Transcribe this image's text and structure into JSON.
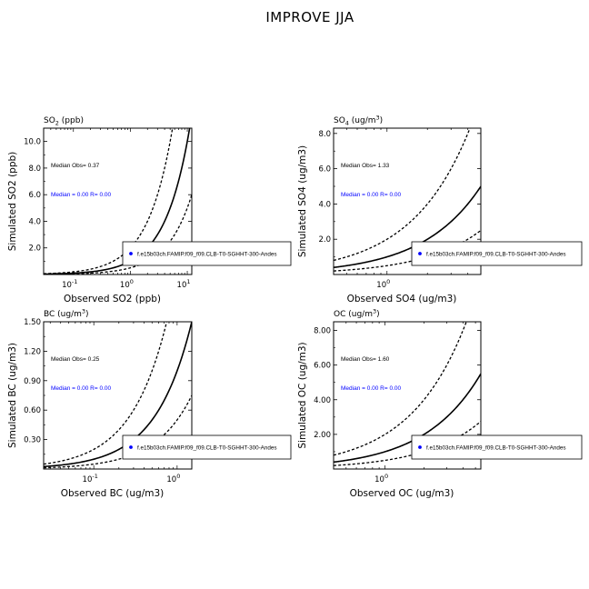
{
  "figure_title": "IMPROVE JJA",
  "colors": {
    "median_annotation": "#0000ff",
    "legend_marker": "#0000ff",
    "lines": "#000000"
  },
  "chart_data": [
    {
      "type": "scatter",
      "title": "SO2 (ppb)",
      "title_base": "SO",
      "title_sub": "2",
      "title_rest": " (ppb)",
      "xlabel": "Observed SO2 (ppb)",
      "ylabel": "Simulated SO2 (ppb)",
      "x_scale": "log",
      "xlim": [
        0.03,
        12
      ],
      "ylim": [
        0,
        11
      ],
      "x_ticks": [
        {
          "value": 0.1,
          "base": "10",
          "exp": "-1"
        },
        {
          "value": 1,
          "base": "10",
          "exp": "0"
        },
        {
          "value": 10,
          "base": "10",
          "exp": "1"
        }
      ],
      "y_ticks": [
        2,
        4,
        6,
        8,
        10
      ],
      "y_tick_labels": [
        "2.0",
        "4.0",
        "6.0",
        "8.0",
        "10.0"
      ],
      "lines": [
        "1:1",
        "2:1",
        "1:2"
      ],
      "median_obs": "Median Obs= 0.37",
      "median_sim": "Median = 0.00  R= 0.00",
      "legend": "f.e15b03ch.FAMIP.f09_f09.CLB-T0-SGHHT-300-Andes",
      "points": []
    },
    {
      "type": "scatter",
      "title": "SO4 (ug/m3)",
      "title_base": "SO",
      "title_sub": "4",
      "title_rest": " (ug/m",
      "title_sup": "3",
      "title_end": ")",
      "xlabel": "Observed SO4 (ug/m3)",
      "ylabel": "Simulated SO4 (ug/m3)",
      "x_scale": "log",
      "xlim": [
        0.4,
        5
      ],
      "ylim": [
        0,
        8.3
      ],
      "x_ticks": [
        {
          "value": 1,
          "base": "10",
          "exp": "0"
        }
      ],
      "y_ticks": [
        2,
        4,
        6,
        8
      ],
      "y_tick_labels": [
        "2.0",
        "4.0",
        "6.0",
        "8.0"
      ],
      "lines": [
        "1:1",
        "2:1",
        "1:2"
      ],
      "median_obs": "Median Obs= 1.33",
      "median_sim": "Median = 0.00  R= 0.00",
      "legend": "f.e15b03ch.FAMIP.f09_f09.CLB-T0-SGHHT-300-Andes",
      "points": []
    },
    {
      "type": "scatter",
      "title": "BC (ug/m3)",
      "title_base": "BC",
      "title_rest": " (ug/m",
      "title_sup": "3",
      "title_end": ")",
      "xlabel": "Observed BC (ug/m3)",
      "ylabel": "Simulated BC (ug/m3)",
      "x_scale": "log",
      "xlim": [
        0.025,
        1.5
      ],
      "ylim": [
        0,
        1.5
      ],
      "x_ticks": [
        {
          "value": 0.1,
          "base": "10",
          "exp": "-1"
        },
        {
          "value": 1,
          "base": "10",
          "exp": "0"
        }
      ],
      "y_ticks": [
        0.3,
        0.6,
        0.9,
        1.2,
        1.5
      ],
      "y_tick_labels": [
        "0.30",
        "0.60",
        "0.90",
        "1.20",
        "1.50"
      ],
      "lines": [
        "1:1",
        "2:1",
        "1:2"
      ],
      "median_obs": "Median Obs= 0.25",
      "median_sim": "Median = 0.00  R= 0.00",
      "legend": "f.e15b03ch.FAMIP.f09_f09.CLB-T0-SGHHT-300-Andes",
      "points": []
    },
    {
      "type": "scatter",
      "title": "OC (ug/m3)",
      "title_base": "OC",
      "title_rest": " (ug/m",
      "title_sup": "3",
      "title_end": ")",
      "xlabel": "Observed OC (ug/m3)",
      "ylabel": "Simulated OC (ug/m3)",
      "x_scale": "log",
      "xlim": [
        0.4,
        5.5
      ],
      "ylim": [
        0,
        8.5
      ],
      "x_ticks": [
        {
          "value": 1,
          "base": "10",
          "exp": "0"
        }
      ],
      "y_ticks": [
        2,
        4,
        6,
        8
      ],
      "y_tick_labels": [
        "2.00",
        "4.00",
        "6.00",
        "8.00"
      ],
      "lines": [
        "1:1",
        "2:1",
        "1:2"
      ],
      "median_obs": "Median Obs= 1.60",
      "median_sim": "Median = 0.00  R= 0.00",
      "legend": "f.e15b03ch.FAMIP.f09_f09.CLB-T0-SGHHT-300-Andes",
      "points": []
    }
  ]
}
